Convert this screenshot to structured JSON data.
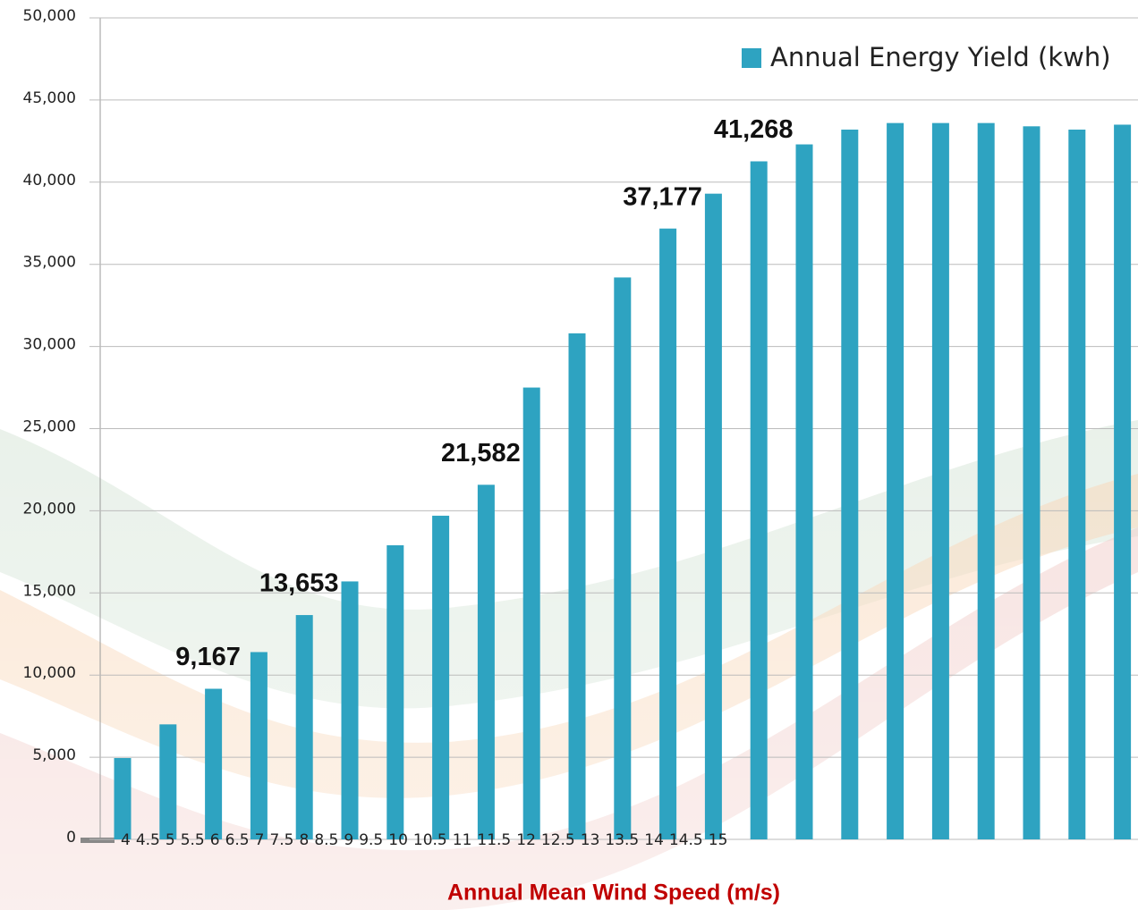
{
  "chart_data": {
    "type": "bar",
    "x_label": "Annual Mean Wind Speed (m/s)",
    "categories": [
      "4",
      "4.5",
      "5",
      "5.5",
      "6",
      "6.5",
      "7",
      "7.5",
      "8",
      "8.5",
      "9",
      "9.5",
      "10",
      "10.5",
      "11",
      "11.5",
      "12",
      "12.5",
      "13",
      "13.5",
      "14",
      "14.5",
      "15"
    ],
    "series": [
      {
        "name": "Annual Energy Yield (kwh)",
        "color": "#2ea3c1",
        "values": [
          4950,
          7000,
          9167,
          11400,
          13653,
          15700,
          17900,
          19700,
          21582,
          27500,
          30800,
          34200,
          37177,
          39300,
          41268,
          42300,
          43200,
          43600,
          43600,
          43600,
          43400,
          43200,
          43500
        ],
        "value_labels": [
          null,
          null,
          "9,167",
          null,
          "13,653",
          null,
          null,
          null,
          "21,582",
          null,
          null,
          null,
          "37,177",
          null,
          "41,268",
          null,
          null,
          null,
          null,
          null,
          null,
          null,
          null
        ]
      }
    ],
    "ylim": [
      0,
      50000
    ],
    "yticks": [
      0,
      {
        "value": 5000,
        "label": "5,000"
      },
      {
        "value": 10000,
        "label": "10,000"
      },
      {
        "value": 15000,
        "label": "15,000"
      },
      {
        "value": 20000,
        "label": "20,000"
      },
      {
        "value": 25000,
        "label": "25,000"
      },
      {
        "value": 30000,
        "label": "30,000"
      },
      {
        "value": 35000,
        "label": "35,000"
      },
      {
        "value": 40000,
        "label": "40,000"
      },
      {
        "value": 45000,
        "label": "45,000"
      },
      {
        "value": 50000,
        "label": "50,000"
      }
    ],
    "grid": true,
    "legend": "top-right"
  }
}
